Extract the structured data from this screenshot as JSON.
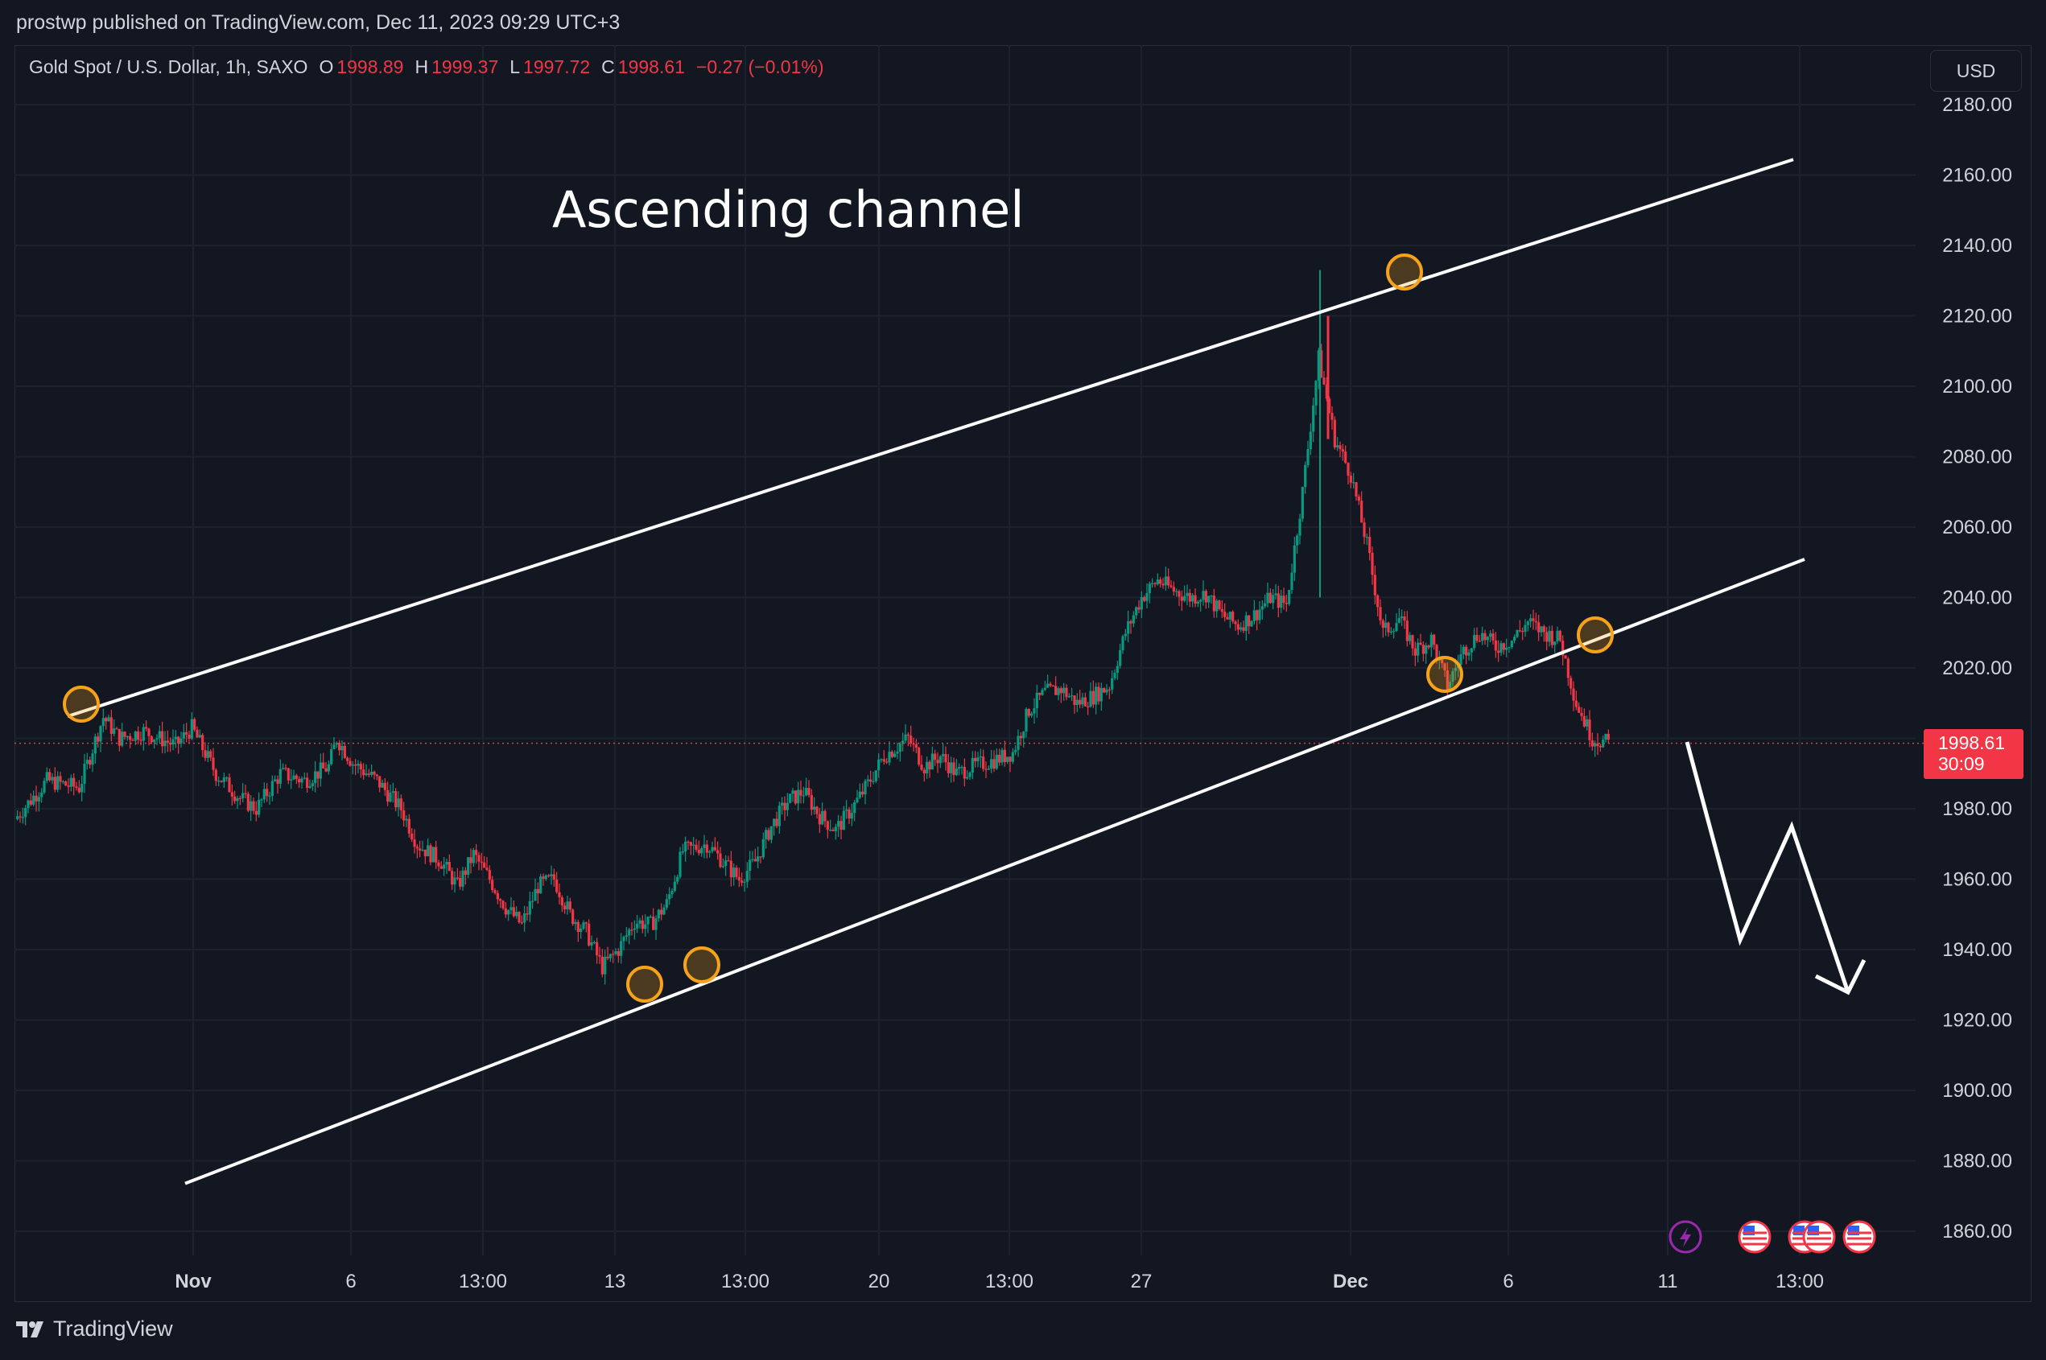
{
  "header": {
    "published": "prostwp published on TradingView.com, Dec 11, 2023 09:29 UTC+3"
  },
  "legend": {
    "symbol": "Gold Spot / U.S. Dollar, 1h, SAXO",
    "open_label": "O",
    "open": "1998.89",
    "high_label": "H",
    "high": "1999.37",
    "low_label": "L",
    "low": "1997.72",
    "close_label": "C",
    "close": "1998.61",
    "change": "−0.27 (−0.01%)"
  },
  "currency_button": "USD",
  "last_price": {
    "value": "1998.61",
    "countdown": "30:09"
  },
  "annotation_text": "Ascending channel",
  "footer": {
    "brand": "TradingView"
  },
  "colors": {
    "up": "#089981",
    "down": "#f23645",
    "background": "#131722",
    "grid": "#1e222d",
    "marker": "#f7a21b"
  },
  "icons": [
    "lightning-event-icon",
    "us-flag-event-icon",
    "us-flag-event-icon",
    "us-flag-event-icon",
    "us-flag-event-icon"
  ],
  "chart_data": {
    "type": "candlestick",
    "timeframe": "1h",
    "x_tick_labels": [
      "Nov",
      "6",
      "13:00",
      "13",
      "13:00",
      "20",
      "13:00",
      "27",
      "Dec",
      "6",
      "11",
      "13:00"
    ],
    "y_tick_labels": [
      "2180.00",
      "2160.00",
      "2140.00",
      "2120.00",
      "2100.00",
      "2080.00",
      "2060.00",
      "2040.00",
      "2020.00",
      "2000.00",
      "1980.00",
      "1960.00",
      "1940.00",
      "1920.00",
      "1900.00",
      "1880.00",
      "1860.00"
    ],
    "ylim": [
      1855,
      2190
    ],
    "current_price": 1998.61,
    "price_path": [
      [
        0,
        1977
      ],
      [
        4,
        1988
      ],
      [
        8,
        1986
      ],
      [
        11,
        2006
      ],
      [
        13,
        2000
      ],
      [
        16,
        2002
      ],
      [
        20,
        1998
      ],
      [
        22,
        2003
      ],
      [
        25,
        1990
      ],
      [
        28,
        1983
      ],
      [
        30,
        1980
      ],
      [
        33,
        1990
      ],
      [
        36,
        1988
      ],
      [
        39,
        1992
      ],
      [
        40,
        2000
      ],
      [
        42,
        1993
      ],
      [
        45,
        1988
      ],
      [
        48,
        1980
      ],
      [
        50,
        1970
      ],
      [
        53,
        1965
      ],
      [
        55,
        1958
      ],
      [
        57,
        1967
      ],
      [
        59,
        1960
      ],
      [
        61,
        1952
      ],
      [
        63,
        1947
      ],
      [
        65,
        1958
      ],
      [
        67,
        1960
      ],
      [
        69,
        1950
      ],
      [
        71,
        1945
      ],
      [
        73,
        1935
      ],
      [
        75,
        1940
      ],
      [
        77,
        1948
      ],
      [
        79,
        1947
      ],
      [
        81,
        1953
      ],
      [
        83,
        1968
      ],
      [
        86,
        1970
      ],
      [
        88,
        1965
      ],
      [
        90,
        1960
      ],
      [
        92,
        1965
      ],
      [
        94,
        1975
      ],
      [
        96,
        1982
      ],
      [
        98,
        1985
      ],
      [
        100,
        1978
      ],
      [
        102,
        1974
      ],
      [
        104,
        1980
      ],
      [
        106,
        1987
      ],
      [
        108,
        1995
      ],
      [
        111,
        2000
      ],
      [
        113,
        1992
      ],
      [
        115,
        1995
      ],
      [
        117,
        1990
      ],
      [
        119,
        1992
      ],
      [
        122,
        1994
      ],
      [
        124,
        1996
      ],
      [
        126,
        2008
      ],
      [
        128,
        2013
      ],
      [
        130,
        2014
      ],
      [
        132,
        2010
      ],
      [
        134,
        2012
      ],
      [
        136,
        2015
      ],
      [
        138,
        2030
      ],
      [
        140,
        2040
      ],
      [
        142,
        2045
      ],
      [
        144,
        2042
      ],
      [
        146,
        2040
      ],
      [
        148,
        2041
      ],
      [
        150,
        2035
      ],
      [
        152,
        2032
      ],
      [
        154,
        2035
      ],
      [
        156,
        2040
      ],
      [
        158,
        2038
      ],
      [
        160,
        2070
      ],
      [
        162,
        2108
      ],
      [
        164,
        2085
      ],
      [
        166,
        2075
      ],
      [
        168,
        2055
      ],
      [
        170,
        2030
      ],
      [
        172,
        2034
      ],
      [
        174,
        2025
      ],
      [
        176,
        2028
      ],
      [
        178,
        2015
      ],
      [
        180,
        2025
      ],
      [
        182,
        2030
      ],
      [
        184,
        2026
      ],
      [
        186,
        2028
      ],
      [
        188,
        2033
      ],
      [
        190,
        2030
      ],
      [
        192,
        2028
      ],
      [
        194,
        2010
      ],
      [
        196,
        2000
      ],
      [
        198,
        1998.61
      ]
    ],
    "x_range": [
      0,
      236
    ],
    "annotations": {
      "channel_upper": [
        [
          2009,
          1.0
        ],
        [
          2166,
          221
        ]
      ],
      "channel_lower": [
        [
          1877,
          20
        ],
        [
          2052,
          222
        ]
      ],
      "touch_points": [
        [
          2009,
          8
        ],
        [
          1930,
          78
        ],
        [
          1935,
          85
        ],
        [
          2132,
          165
        ],
        [
          2018,
          170
        ],
        [
          2029,
          193
        ]
      ],
      "projection": [
        [
          1998,
          198
        ],
        [
          1943,
          209
        ],
        [
          1974,
          216
        ],
        [
          1927,
          228
        ],
        [
          1936,
          230
        ]
      ]
    }
  }
}
